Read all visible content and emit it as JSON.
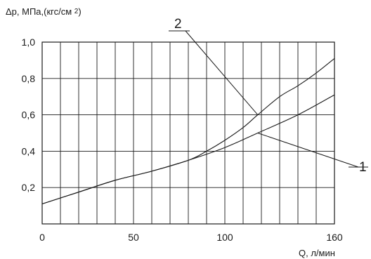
{
  "chart_data": {
    "type": "line",
    "ylabel_prefix": "Δp, МПа,(кгс/см ",
    "ylabel_sup": "2",
    "ylabel_suffix": ")",
    "xlabel": "Q, л/мин",
    "xlim": [
      0,
      160
    ],
    "ylim": [
      0,
      1.0
    ],
    "x_ticks": [
      0,
      50,
      100,
      160
    ],
    "x_tick_labels": [
      "0",
      "50",
      "100",
      "160"
    ],
    "y_ticks": [
      0.2,
      0.4,
      0.6,
      0.8,
      1.0
    ],
    "y_tick_labels": [
      "0,2",
      "0,4",
      "0,6",
      "0,8",
      "1,0"
    ],
    "x_grid_step": 10,
    "y_grid_step": 0.2,
    "grid": true,
    "series": [
      {
        "name": "1",
        "x": [
          0,
          20,
          40,
          60,
          80,
          100,
          118,
          140,
          160
        ],
        "y": [
          0.11,
          0.175,
          0.24,
          0.29,
          0.35,
          0.42,
          0.5,
          0.6,
          0.71
        ]
      },
      {
        "name": "2",
        "x": [
          0,
          20,
          40,
          60,
          80,
          90,
          100,
          110,
          118,
          130,
          140,
          150,
          160
        ],
        "y": [
          0.11,
          0.175,
          0.24,
          0.29,
          0.35,
          0.4,
          0.46,
          0.53,
          0.6,
          0.7,
          0.76,
          0.83,
          0.91
        ]
      }
    ],
    "annotations": [
      {
        "text": "1",
        "anchor_x": 118,
        "anchor_y": 0.5
      },
      {
        "text": "2",
        "anchor_x": 118,
        "anchor_y": 0.6
      }
    ]
  }
}
